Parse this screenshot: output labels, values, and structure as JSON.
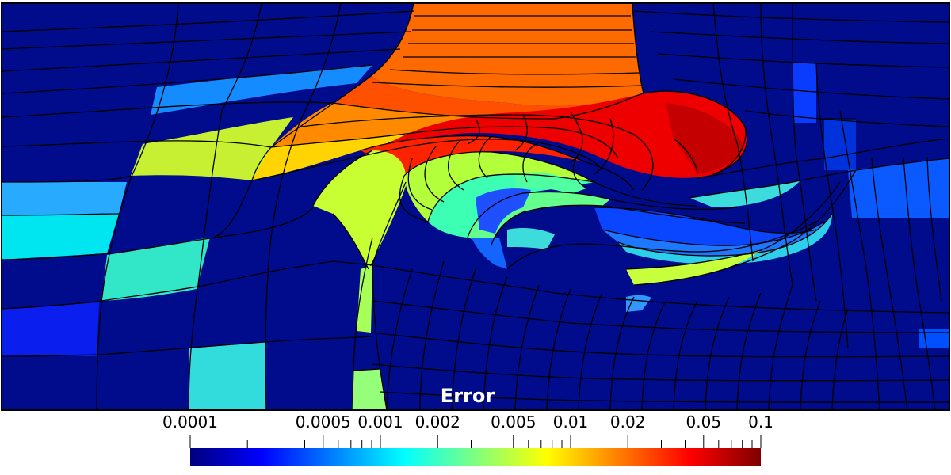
{
  "colorbar": {
    "title": "Error",
    "scale": "log",
    "range": [
      0.0001,
      0.1
    ],
    "colormap": "jet",
    "labels": [
      "0.0001",
      "0.0005",
      "0.001",
      "0.002",
      "0.005",
      "0.01",
      "0.02",
      "0.05",
      "0.1"
    ],
    "colors": [
      "#00007f",
      "#0000ff",
      "#007fff",
      "#00ffff",
      "#7fff7f",
      "#ffff00",
      "#ff7f00",
      "#ff0000",
      "#7f0000"
    ]
  },
  "field": {
    "background_color": "#000c8c",
    "mesh_line_color": "#000000"
  }
}
